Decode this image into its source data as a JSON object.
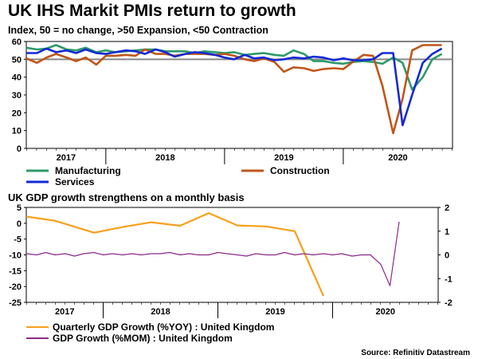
{
  "header": {
    "title": "UK IHS Markit PMIs return to growth",
    "subtitle": "Index, 50 = no change, >50 Expansion,  <50 Contraction",
    "subtitle2": "UK GDP growth strengthens on a monthly basis",
    "source": "Source: Refinitiv Datastream"
  },
  "colors": {
    "manufacturing": "#2e9a6a",
    "construction": "#c0561a",
    "services": "#1428d6",
    "quarterly": "#f7a01a",
    "monthly": "#8a2a8a",
    "reference": "#888888"
  },
  "chart_data": [
    {
      "type": "line",
      "title": "UK IHS Markit PMIs return to growth",
      "subtitle": "Index, 50 = no change, >50 Expansion,  <50 Contraction",
      "ylim": [
        0,
        60
      ],
      "yticks": [
        0,
        10,
        20,
        30,
        40,
        50,
        60
      ],
      "xlim": [
        2016.83,
        2020.42
      ],
      "xticks": [
        "2017",
        "2018",
        "2019",
        "2020"
      ],
      "reference_line": 50,
      "legend_position": "bottom",
      "series": [
        {
          "name": "Manufacturing",
          "color_key": "manufacturing",
          "x": [
            2016.83,
            2016.92,
            2017.0,
            2017.08,
            2017.17,
            2017.25,
            2017.33,
            2017.42,
            2017.5,
            2017.58,
            2017.67,
            2017.75,
            2017.83,
            2017.92,
            2018.0,
            2018.08,
            2018.17,
            2018.25,
            2018.33,
            2018.42,
            2018.5,
            2018.58,
            2018.67,
            2018.75,
            2018.83,
            2018.92,
            2019.0,
            2019.08,
            2019.17,
            2019.25,
            2019.33,
            2019.42,
            2019.5,
            2019.58,
            2019.67,
            2019.75,
            2019.83,
            2019.92,
            2020.0,
            2020.08,
            2020.17,
            2020.25,
            2020.33
          ],
          "y": [
            56.5,
            55.5,
            56.0,
            58.0,
            55.5,
            55.0,
            56.5,
            54.0,
            55.0,
            54.0,
            54.5,
            55.0,
            55.5,
            55.5,
            54.5,
            54.5,
            54.5,
            53.5,
            54.5,
            54.0,
            53.5,
            54.0,
            52.5,
            53.0,
            53.5,
            52.5,
            52.0,
            55.0,
            53.0,
            49.0,
            49.0,
            48.0,
            47.5,
            48.5,
            49.0,
            48.5,
            47.5,
            51.0,
            48.0,
            33.0,
            40.0,
            50.0,
            53.0
          ]
        },
        {
          "name": "Construction",
          "color_key": "construction",
          "x": [
            2016.83,
            2016.92,
            2017.0,
            2017.08,
            2017.17,
            2017.25,
            2017.33,
            2017.42,
            2017.5,
            2017.58,
            2017.67,
            2017.75,
            2017.83,
            2017.92,
            2018.0,
            2018.08,
            2018.17,
            2018.25,
            2018.33,
            2018.42,
            2018.5,
            2018.58,
            2018.67,
            2018.75,
            2018.83,
            2018.92,
            2019.0,
            2019.08,
            2019.17,
            2019.25,
            2019.33,
            2019.42,
            2019.5,
            2019.58,
            2019.67,
            2019.75,
            2019.83,
            2019.92,
            2020.0,
            2020.08,
            2020.17,
            2020.25,
            2020.33
          ],
          "y": [
            50.5,
            48.0,
            51.0,
            53.0,
            51.0,
            49.0,
            51.0,
            47.0,
            52.0,
            52.0,
            52.5,
            52.0,
            55.5,
            53.0,
            53.0,
            52.0,
            53.0,
            53.0,
            53.0,
            52.5,
            53.0,
            52.0,
            50.0,
            49.0,
            50.5,
            48.5,
            43.0,
            45.5,
            45.0,
            43.5,
            44.5,
            45.0,
            44.5,
            48.5,
            52.5,
            52.0,
            35.0,
            8.5,
            28.0,
            55.0,
            58.0,
            58.0,
            58.0
          ]
        },
        {
          "name": "Services",
          "color_key": "services",
          "x": [
            2016.83,
            2016.92,
            2017.0,
            2017.08,
            2017.17,
            2017.25,
            2017.33,
            2017.42,
            2017.5,
            2017.58,
            2017.67,
            2017.75,
            2017.83,
            2017.92,
            2018.0,
            2018.08,
            2018.17,
            2018.25,
            2018.33,
            2018.42,
            2018.5,
            2018.58,
            2018.67,
            2018.75,
            2018.83,
            2018.92,
            2019.0,
            2019.08,
            2019.17,
            2019.25,
            2019.33,
            2019.42,
            2019.5,
            2019.58,
            2019.67,
            2019.75,
            2019.83,
            2019.92,
            2020.0,
            2020.08,
            2020.17,
            2020.25,
            2020.33
          ],
          "y": [
            53.5,
            53.5,
            56.0,
            54.0,
            55.0,
            53.5,
            55.5,
            53.5,
            53.0,
            54.0,
            55.0,
            54.5,
            53.0,
            55.5,
            54.0,
            51.5,
            53.0,
            54.0,
            53.5,
            52.5,
            51.0,
            50.0,
            52.5,
            50.5,
            51.0,
            49.5,
            50.0,
            51.0,
            50.5,
            51.5,
            51.0,
            49.5,
            50.5,
            49.5,
            49.5,
            50.0,
            53.5,
            53.5,
            13.0,
            30.0,
            48.0,
            53.0,
            56.0
          ]
        }
      ],
      "plot_order": [
        "Manufacturing",
        "Construction",
        "Services"
      ]
    },
    {
      "type": "line",
      "title": "UK GDP growth strengthens on a monthly basis",
      "ylim_left": [
        -25,
        5
      ],
      "yticks_left": [
        5,
        0,
        -5,
        -10,
        -15,
        -20,
        -25
      ],
      "ylim_right": [
        -2,
        2
      ],
      "yticks_right": [
        2,
        1,
        0,
        -1,
        -2
      ],
      "xlim": [
        2016.83,
        2020.42
      ],
      "xticks": [
        "2017",
        "2018",
        "2019",
        "2020"
      ],
      "legend_position": "bottom",
      "series": [
        {
          "name": "Quarterly GDP Growth  (%YOY) : United Kingdom",
          "color_key": "quarterly",
          "axis": "left",
          "x": [
            2016.83,
            2017.08,
            2017.42,
            2017.67,
            2017.92,
            2018.17,
            2018.42,
            2018.67,
            2018.92,
            2019.17,
            2019.42,
            2019.67,
            2019.92
          ],
          "y": [
            2.1,
            0.8,
            -3.0,
            -1.2,
            0.3,
            -0.8,
            3.2,
            -0.7,
            -1.0,
            -2.5,
            -23.0,
            null,
            null
          ]
        },
        {
          "name": "GDP Growth (%MOM) : United Kingdom",
          "color_key": "monthly",
          "axis": "right",
          "x": [
            2016.83,
            2016.92,
            2017.0,
            2017.08,
            2017.17,
            2017.25,
            2017.33,
            2017.42,
            2017.5,
            2017.58,
            2017.67,
            2017.75,
            2017.83,
            2017.92,
            2018.0,
            2018.08,
            2018.17,
            2018.25,
            2018.33,
            2018.42,
            2018.5,
            2018.58,
            2018.67,
            2018.75,
            2018.83,
            2018.92,
            2019.0,
            2019.08,
            2019.17,
            2019.25,
            2019.33,
            2019.42,
            2019.5,
            2019.58,
            2019.67,
            2019.75,
            2019.83,
            2019.92,
            2020.0,
            2020.08
          ],
          "y": [
            0.05,
            0.0,
            0.1,
            0.0,
            0.05,
            -0.05,
            0.05,
            0.1,
            0.0,
            0.05,
            0.0,
            0.05,
            0.0,
            0.05,
            0.05,
            0.1,
            0.0,
            0.05,
            0.0,
            0.0,
            0.1,
            0.05,
            0.0,
            -0.05,
            0.05,
            0.0,
            0.0,
            0.1,
            0.0,
            0.05,
            0.0,
            0.05,
            0.0,
            0.05,
            -0.05,
            0.0,
            0.0,
            -0.4,
            -1.3,
            1.4
          ]
        }
      ]
    }
  ]
}
